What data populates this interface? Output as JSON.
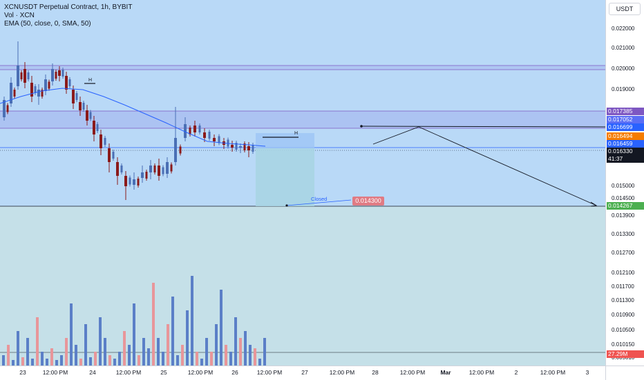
{
  "legend": {
    "title": "XCNUSDT Perpetual Contract, 1h, BYBIT",
    "vol": "Vol · XCN",
    "ema": "EMA (50, close, 0, SMA, 50)"
  },
  "currency_button": "USDT",
  "price_ticks": [
    "0.022000",
    "0.021000",
    "0.020000",
    "0.019000",
    "0.015000",
    "0.014500",
    "0.013900",
    "0.013300",
    "0.012700",
    "0.012100",
    "0.011700",
    "0.011300",
    "0.010900",
    "0.010500",
    "0.010150",
    "0.009810"
  ],
  "price_tags": [
    {
      "label": "0.017385",
      "color": "#7e57c2"
    },
    {
      "label": "0.017052",
      "color": "#5b6ef5"
    },
    {
      "label": "0.016699",
      "color": "#2962ff"
    },
    {
      "label": "0.016494",
      "color": "#f57c00"
    },
    {
      "label": "0.016459",
      "color": "#2962ff"
    },
    {
      "label": "0.016330",
      "color": "#131722"
    },
    {
      "label": "41:37",
      "color": "#131722"
    },
    {
      "label": "0.014267",
      "color": "#4caf50"
    },
    {
      "label": "27.29M",
      "color": "#ef5350"
    }
  ],
  "time_ticks": [
    {
      "label": "23",
      "bold": false
    },
    {
      "label": "12:00 PM",
      "bold": false
    },
    {
      "label": "24",
      "bold": false
    },
    {
      "label": "12:00 PM",
      "bold": false
    },
    {
      "label": "25",
      "bold": false
    },
    {
      "label": "12:00 PM",
      "bold": false
    },
    {
      "label": "26",
      "bold": false
    },
    {
      "label": "12:00 PM",
      "bold": false
    },
    {
      "label": "27",
      "bold": false
    },
    {
      "label": "12:00 PM",
      "bold": false
    },
    {
      "label": "28",
      "bold": false
    },
    {
      "label": "12:00 PM",
      "bold": false
    },
    {
      "label": "Mar",
      "bold": true
    },
    {
      "label": "12:00 PM",
      "bold": false
    },
    {
      "label": "2",
      "bold": false
    },
    {
      "label": "12:00 PM",
      "bold": false
    },
    {
      "label": "3",
      "bold": false
    }
  ],
  "annotations": {
    "closed_text": "Closed",
    "closed_price": "0.014300",
    "h_label": "H"
  },
  "colors": {
    "up": "#4a6fb5",
    "down": "#8b1a1a",
    "vol_up": "#5b7fc7",
    "vol_down": "#e8969a",
    "ema": "#2962ff",
    "zone_band": "#7e57c2"
  },
  "chart_data": {
    "type": "candlestick",
    "symbol": "XCNUSDT",
    "interval": "1h",
    "exchange": "BYBIT",
    "approx_close_series": [
      0.0169,
      0.0172,
      0.019,
      0.0205,
      0.0196,
      0.0192,
      0.0187,
      0.0194,
      0.0198,
      0.0201,
      0.0193,
      0.0189,
      0.0186,
      0.0181,
      0.0178,
      0.0173,
      0.0166,
      0.0162,
      0.0157,
      0.0151,
      0.0149,
      0.0152,
      0.0155,
      0.0153,
      0.016,
      0.0176,
      0.0171,
      0.0169,
      0.0167,
      0.0166,
      0.0165,
      0.0164,
      0.01633
    ],
    "last_price": 0.01633,
    "target_price": 0.014267,
    "closed_price": 0.0143
  }
}
